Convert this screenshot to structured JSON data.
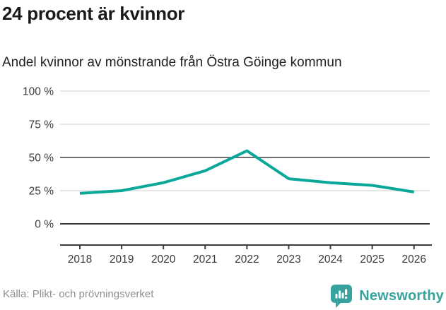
{
  "header": {
    "title": "24 procent är kvinnor",
    "subtitle": "Andel kvinnor av mönstrande från Östra Göinge kommun"
  },
  "chart_data": {
    "type": "line",
    "x": [
      2018,
      2019,
      2020,
      2021,
      2022,
      2023,
      2024,
      2025,
      2026
    ],
    "values": [
      23,
      25,
      31,
      40,
      55,
      34,
      31,
      29,
      24
    ],
    "series_name": "Andel kvinnor av mönstrande",
    "title": "24 procent är kvinnor",
    "subtitle": "Andel kvinnor av mönstrande från Östra Göinge kommun",
    "xlabel": "",
    "ylabel": "",
    "ylim": [
      0,
      100
    ],
    "yticks": [
      0,
      25,
      50,
      75,
      100
    ],
    "ytick_format": "{v} %",
    "emphasized_gridlines": [
      0,
      50
    ],
    "grid": true,
    "legend": "none",
    "line_color": "#0ba89a"
  },
  "footer": {
    "source": "Källa: Plikt- och prövningsverket",
    "brand": "Newsworthy",
    "brand_color": "#38a39e"
  }
}
